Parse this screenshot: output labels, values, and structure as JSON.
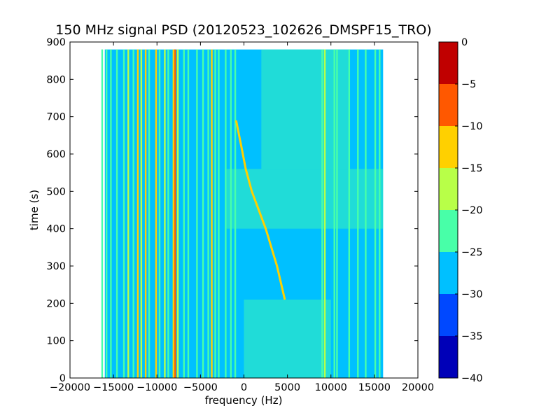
{
  "chart_data": {
    "type": "heatmap",
    "title": "150 MHz signal PSD (20120523_102626_DMSPF15_TRO)",
    "xlabel": "frequency (Hz)",
    "ylabel": "time (s)",
    "xlim": [
      -20000,
      20000
    ],
    "ylim": [
      0,
      900
    ],
    "x_ticks": [
      -20000,
      -15000,
      -10000,
      -5000,
      0,
      5000,
      10000,
      15000,
      20000
    ],
    "x_tick_labels": [
      "−20000",
      "−15000",
      "−10000",
      "−5000",
      "0",
      "5000",
      "10000",
      "15000",
      "20000"
    ],
    "y_ticks": [
      0,
      100,
      200,
      300,
      400,
      500,
      600,
      700,
      800,
      900
    ],
    "y_tick_labels": [
      "0",
      "100",
      "200",
      "300",
      "400",
      "500",
      "600",
      "700",
      "800",
      "900"
    ],
    "data_extent": {
      "x": [
        -16000,
        16000
      ],
      "y": [
        0,
        880
      ]
    },
    "colormap": "jet",
    "color_levels": [
      -40,
      -35,
      -30,
      -25,
      -20,
      -15,
      -10,
      -5,
      0
    ],
    "level_colors": [
      "#0000b8",
      "#0048ff",
      "#00c0ff",
      "#48ffa8",
      "#b8ff48",
      "#ffd000",
      "#ff5800",
      "#c00000"
    ],
    "colorbar": {
      "ticks": [
        0,
        -5,
        -10,
        -15,
        -20,
        -25,
        -30,
        -35,
        -40
      ],
      "tick_labels": [
        "0",
        "−5",
        "−10",
        "−15",
        "−20",
        "−25",
        "−30",
        "−35",
        "−40"
      ]
    },
    "background_level": -27,
    "lines": [
      {
        "kind": "signal_track",
        "description": "Doppler-shifted satellite signal",
        "level": -13,
        "points": [
          {
            "t": 210,
            "f": 4700
          },
          {
            "t": 300,
            "f": 3800
          },
          {
            "t": 400,
            "f": 2500
          },
          {
            "t": 500,
            "f": 900
          },
          {
            "t": 560,
            "f": 200
          },
          {
            "t": 620,
            "f": -300
          },
          {
            "t": 690,
            "f": -900
          }
        ]
      },
      {
        "kind": "vertical",
        "f": -16300,
        "level": -22
      },
      {
        "kind": "vertical",
        "f": -15800,
        "level": -24
      },
      {
        "kind": "vertical",
        "f": -15300,
        "level": -22
      },
      {
        "kind": "vertical",
        "f": -14600,
        "level": -23
      },
      {
        "kind": "vertical",
        "f": -13800,
        "level": -22
      },
      {
        "kind": "vertical",
        "f": -13300,
        "level": -18
      },
      {
        "kind": "vertical",
        "f": -12700,
        "level": -23
      },
      {
        "kind": "vertical",
        "f": -12200,
        "level": -15
      },
      {
        "kind": "vertical",
        "f": -11800,
        "level": -20
      },
      {
        "kind": "vertical",
        "f": -11300,
        "level": -14
      },
      {
        "kind": "vertical",
        "f": -10900,
        "level": -22
      },
      {
        "kind": "vertical",
        "f": -10100,
        "level": -13
      },
      {
        "kind": "vertical",
        "f": -9700,
        "level": -22
      },
      {
        "kind": "vertical",
        "f": -9100,
        "level": -17
      },
      {
        "kind": "vertical",
        "f": -8700,
        "level": -22
      },
      {
        "kind": "vertical",
        "f": -8100,
        "level": -12
      },
      {
        "kind": "vertical",
        "f": -7900,
        "level": -8
      },
      {
        "kind": "vertical",
        "f": -7600,
        "level": -18
      },
      {
        "kind": "vertical",
        "f": -6900,
        "level": -21
      },
      {
        "kind": "vertical",
        "f": -6400,
        "level": -22
      },
      {
        "kind": "vertical",
        "f": -5400,
        "level": -23
      },
      {
        "kind": "vertical",
        "f": -4700,
        "level": -21
      },
      {
        "kind": "vertical",
        "f": -4100,
        "level": -22
      },
      {
        "kind": "vertical",
        "f": -3700,
        "level": -14
      },
      {
        "kind": "vertical",
        "f": -3300,
        "level": -23
      },
      {
        "kind": "vertical",
        "f": -2900,
        "level": -21
      },
      {
        "kind": "vertical",
        "f": -2100,
        "level": -23
      },
      {
        "kind": "vertical",
        "f": -1500,
        "level": -23
      },
      {
        "kind": "vertical",
        "f": -1000,
        "level": -23
      },
      {
        "kind": "vertical",
        "f": 9000,
        "level": -23
      },
      {
        "kind": "vertical",
        "f": 9300,
        "level": -19
      },
      {
        "kind": "vertical",
        "f": 10400,
        "level": -22
      },
      {
        "kind": "vertical",
        "f": 10700,
        "level": -22
      },
      {
        "kind": "vertical",
        "f": 12100,
        "level": -23
      },
      {
        "kind": "vertical",
        "f": 13100,
        "level": -22
      },
      {
        "kind": "vertical",
        "f": 14000,
        "level": -23
      },
      {
        "kind": "vertical",
        "f": 15100,
        "level": -22
      },
      {
        "kind": "vertical",
        "f": 15600,
        "level": -23
      }
    ],
    "regions": [
      {
        "kind": "elevated_noise",
        "f": [
          0,
          10000
        ],
        "t": [
          0,
          210
        ],
        "level": -24
      },
      {
        "kind": "elevated_noise",
        "f": [
          2000,
          12000
        ],
        "t": [
          560,
          880
        ],
        "level": -24
      },
      {
        "kind": "elevated_noise",
        "f": [
          -2000,
          16000
        ],
        "t": [
          400,
          560
        ],
        "level": -25
      }
    ],
    "grid": false,
    "legend": "colorbar-right"
  }
}
